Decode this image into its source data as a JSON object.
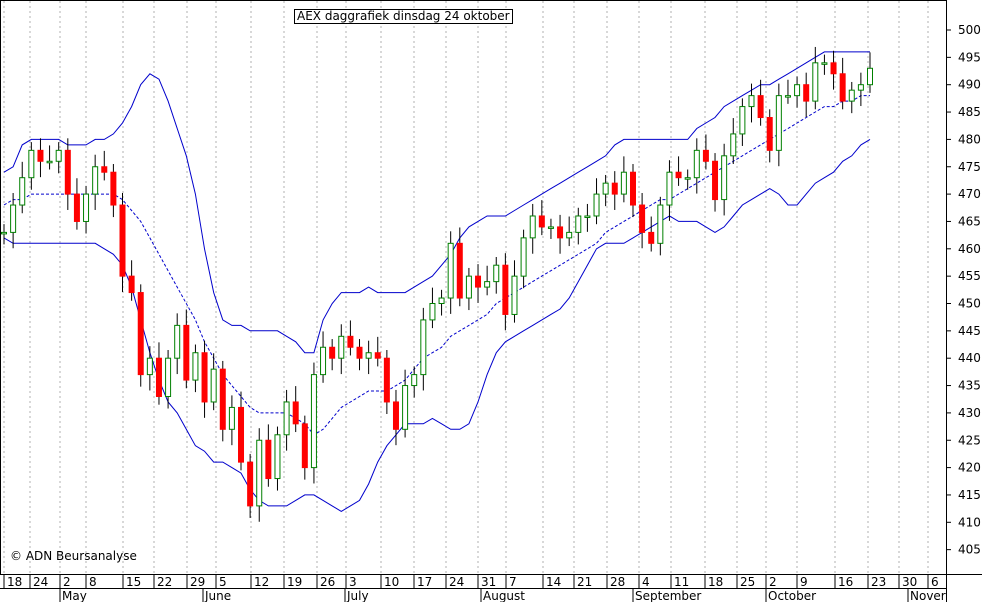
{
  "chart_data": {
    "type": "candlestick",
    "title": "AEX daggrafiek dinsdag 24 oktober",
    "copyright": "© ADN Beursanalyse",
    "y_axis": {
      "min": 400,
      "max": 505,
      "ticks": [
        405,
        410,
        415,
        420,
        425,
        430,
        435,
        440,
        445,
        450,
        455,
        460,
        465,
        470,
        475,
        480,
        485,
        490,
        495,
        500
      ]
    },
    "x_day_labels": [
      "18",
      "24",
      "2",
      "8",
      "15",
      "22",
      "29",
      "5",
      "12",
      "19",
      "26",
      "3",
      "10",
      "17",
      "24",
      "31",
      "7",
      "14",
      "21",
      "28",
      "4",
      "11",
      "18",
      "25",
      "2",
      "9",
      "16",
      "23",
      "30",
      "6"
    ],
    "x_month_labels": [
      "May",
      "June",
      "July",
      "August",
      "September",
      "October",
      "Nover"
    ],
    "colors": {
      "up": "#008000",
      "down": "#ff0000",
      "bands": "#0000cc",
      "grid": "#b0b0b0"
    },
    "indicators": [
      "bollinger upper band",
      "moving average (dashed)",
      "bollinger lower band"
    ],
    "series": {
      "close": [
        463,
        468,
        473,
        478,
        476,
        476,
        478,
        470,
        465,
        470,
        475,
        474,
        468,
        455,
        452,
        437,
        440,
        433,
        440,
        446,
        436,
        441,
        432,
        438,
        427,
        431,
        421,
        413,
        425,
        418,
        426,
        432,
        428,
        420,
        437,
        442,
        440,
        444,
        442,
        440,
        441,
        440,
        432,
        427,
        435,
        437,
        447,
        450,
        451,
        461,
        451,
        455,
        453,
        454,
        457,
        448,
        455,
        462,
        466,
        464,
        464,
        462,
        463,
        466,
        466,
        470,
        472,
        470,
        474,
        468,
        463,
        461,
        468,
        474,
        473,
        473,
        478,
        476,
        469,
        477,
        481,
        486,
        488,
        484,
        478,
        488,
        488,
        490,
        487,
        494,
        494,
        492,
        487,
        489,
        490,
        493
      ],
      "upper": [
        474,
        475,
        479,
        480,
        480,
        480,
        480,
        479,
        479,
        479,
        480,
        480,
        481,
        483,
        486,
        490,
        492,
        491,
        487,
        482,
        477,
        470,
        460,
        452,
        447,
        446,
        446,
        445,
        445,
        445,
        445,
        444,
        443,
        441,
        441,
        447,
        450,
        452,
        452,
        452,
        453,
        452,
        452,
        452,
        452,
        453,
        454,
        455,
        457,
        459,
        462,
        464,
        465,
        466,
        466,
        466,
        467,
        468,
        469,
        470,
        471,
        472,
        473,
        474,
        475,
        476,
        477,
        479,
        480,
        480,
        480,
        480,
        480,
        480,
        480,
        480,
        482,
        483,
        484,
        486,
        487,
        488,
        489,
        490,
        490,
        491,
        492,
        493,
        494,
        495,
        496,
        496,
        496,
        496,
        496,
        496
      ],
      "ma": [
        468,
        469,
        469,
        470,
        470,
        470,
        470,
        470,
        470,
        470,
        470,
        470,
        470,
        469,
        467,
        465,
        462,
        459,
        456,
        453,
        450,
        447,
        443,
        440,
        437,
        435,
        433,
        431,
        430,
        430,
        430,
        430,
        429,
        428,
        426,
        427,
        429,
        431,
        432,
        433,
        434,
        434,
        434,
        435,
        436,
        438,
        440,
        441,
        442,
        444,
        445,
        446,
        447,
        448,
        450,
        451,
        452,
        453,
        454,
        455,
        456,
        457,
        458,
        459,
        460,
        461,
        463,
        464,
        465,
        466,
        467,
        468,
        469,
        469,
        470,
        471,
        472,
        473,
        474,
        475,
        476,
        477,
        478,
        479,
        480,
        481,
        482,
        483,
        484,
        485,
        486,
        486,
        487,
        487,
        488,
        488
      ],
      "lower": [
        462,
        461,
        461,
        461,
        461,
        461,
        461,
        461,
        461,
        461,
        461,
        460,
        459,
        457,
        453,
        447,
        441,
        436,
        432,
        430,
        427,
        424,
        423,
        421,
        421,
        420,
        419,
        416,
        414,
        413,
        413,
        413,
        414,
        415,
        415,
        414,
        413,
        412,
        413,
        414,
        417,
        421,
        424,
        426,
        428,
        428,
        428,
        429,
        428,
        427,
        427,
        428,
        432,
        437,
        441,
        443,
        444,
        445,
        446,
        447,
        448,
        449,
        451,
        454,
        457,
        460,
        461,
        461,
        461,
        462,
        463,
        464,
        465,
        466,
        465,
        465,
        465,
        464,
        463,
        464,
        466,
        468,
        469,
        470,
        471,
        470,
        468,
        468,
        470,
        472,
        473,
        474,
        476,
        477,
        479,
        480
      ]
    }
  }
}
